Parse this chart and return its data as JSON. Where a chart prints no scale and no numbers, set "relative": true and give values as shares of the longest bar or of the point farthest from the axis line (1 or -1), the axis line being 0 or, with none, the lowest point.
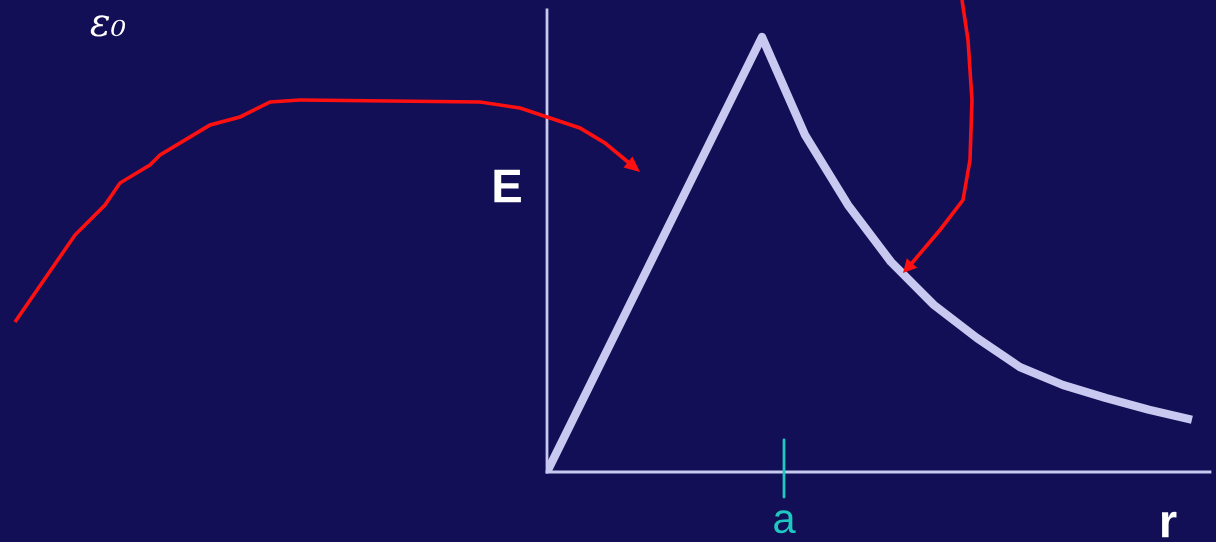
{
  "chart_data": {
    "type": "line",
    "relative": true,
    "xlabel": "r",
    "ylabel": "E",
    "categories": [
      null,
      null,
      null,
      null,
      null,
      null,
      null,
      null,
      null,
      null,
      null,
      null,
      null,
      null,
      null,
      null
    ],
    "series": [
      {
        "color": "#c8c8f0",
        "values": [
          0,
          0.2,
          0.4,
          0.6,
          0.8,
          1.0,
          0.775,
          0.614,
          0.483,
          0.384,
          0.308,
          0.241,
          0.2,
          0.17,
          0.143,
          0.12
        ]
      }
    ],
    "annotations": [
      "ε₀",
      "a"
    ],
    "marker": "none",
    "line_style": "solid"
  }
}
